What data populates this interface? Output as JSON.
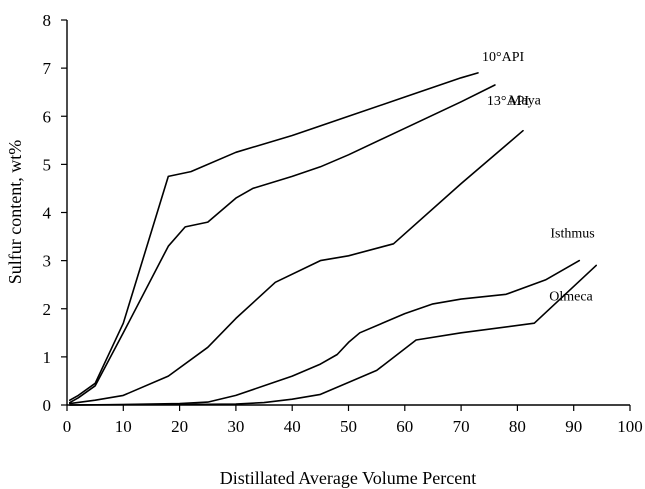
{
  "chart_data": {
    "type": "line",
    "xlabel": "Distillated Average Volume Percent",
    "ylabel": "Sulfur content, wt%",
    "xlim": [
      0,
      100
    ],
    "ylim": [
      0,
      8
    ],
    "x_ticks": [
      0,
      10,
      20,
      30,
      40,
      50,
      60,
      70,
      80,
      90,
      100
    ],
    "y_ticks": [
      0,
      1,
      2,
      3,
      4,
      5,
      6,
      7,
      8
    ],
    "grid": false,
    "legend": "none",
    "series": [
      {
        "name": "10°API",
        "x": [
          0.5,
          2,
          5,
          10,
          18,
          22,
          30,
          40,
          50,
          60,
          70,
          73
        ],
        "y": [
          0.1,
          0.2,
          0.45,
          1.7,
          4.75,
          4.85,
          5.25,
          5.6,
          6.0,
          6.4,
          6.8,
          6.9
        ]
      },
      {
        "name": "13°API",
        "x": [
          0.5,
          2,
          5,
          10,
          18,
          21,
          23,
          25,
          30,
          33,
          40,
          45,
          50,
          60,
          70,
          76
        ],
        "y": [
          0.05,
          0.15,
          0.4,
          1.5,
          3.3,
          3.7,
          3.75,
          3.8,
          4.3,
          4.5,
          4.75,
          4.95,
          5.2,
          5.75,
          6.3,
          6.65
        ]
      },
      {
        "name": "Maya",
        "x": [
          0.5,
          5,
          10,
          18,
          25,
          30,
          37,
          45,
          50,
          58,
          70,
          81
        ],
        "y": [
          0.03,
          0.1,
          0.2,
          0.6,
          1.2,
          1.8,
          2.55,
          3.0,
          3.1,
          3.35,
          4.6,
          5.7
        ]
      },
      {
        "name": "Isthmus",
        "x": [
          0.5,
          10,
          20,
          25,
          30,
          40,
          45,
          48,
          50,
          52,
          60,
          65,
          70,
          78,
          85,
          91
        ],
        "y": [
          0.0,
          0.01,
          0.03,
          0.06,
          0.2,
          0.6,
          0.85,
          1.05,
          1.3,
          1.5,
          1.9,
          2.1,
          2.2,
          2.3,
          2.6,
          3.0
        ]
      },
      {
        "name": "Olmeca",
        "x": [
          0.5,
          20,
          30,
          35,
          40,
          45,
          55,
          62,
          70,
          83,
          94
        ],
        "y": [
          0.0,
          0.01,
          0.02,
          0.05,
          0.12,
          0.22,
          0.72,
          1.35,
          1.5,
          1.7,
          2.9
        ]
      }
    ]
  }
}
